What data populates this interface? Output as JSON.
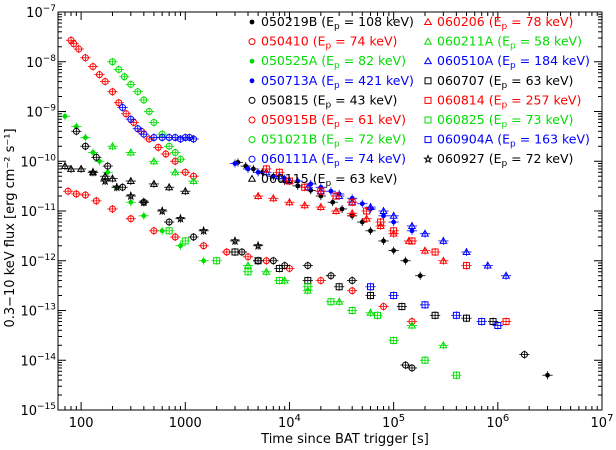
{
  "chart_data": {
    "type": "scatter",
    "xlabel": "Time since BAT trigger [s]",
    "ylabel": "0.3−10 keV flux [erg cm⁻² s⁻¹]",
    "x_scale": "log",
    "y_scale": "log",
    "xlim": [
      60,
      10000000
    ],
    "ylim": [
      1e-15,
      1e-07
    ],
    "x_ticks": [
      {
        "value": 100,
        "label": "100"
      },
      {
        "value": 1000,
        "label": "1000"
      },
      {
        "value": 10000,
        "label": "10",
        "exp": "4"
      },
      {
        "value": 100000,
        "label": "10",
        "exp": "5"
      },
      {
        "value": 1000000,
        "label": "10",
        "exp": "6"
      },
      {
        "value": 10000000,
        "label": "10",
        "exp": "7"
      }
    ],
    "y_ticks": [
      {
        "value": 1e-15,
        "label": "10",
        "exp": "−15"
      },
      {
        "value": 1e-14,
        "label": "10",
        "exp": "−14"
      },
      {
        "value": 1e-13,
        "label": "10",
        "exp": "−13"
      },
      {
        "value": 1e-12,
        "label": "10",
        "exp": "−12"
      },
      {
        "value": 1e-11,
        "label": "10",
        "exp": "−11"
      },
      {
        "value": 1e-10,
        "label": "10",
        "exp": "−10"
      },
      {
        "value": 1e-09,
        "label": "10",
        "exp": "−9"
      },
      {
        "value": 1e-08,
        "label": "10",
        "exp": "−8"
      },
      {
        "value": 1e-07,
        "label": "10",
        "exp": "−7"
      }
    ],
    "series": [
      {
        "name": "050219B",
        "ep": "108",
        "color": "#000000",
        "marker": "filled-circle",
        "points": [
          [
            3200,
            9.5e-11
          ],
          [
            3800,
            8e-11
          ],
          [
            4500,
            7e-11
          ],
          [
            5500,
            6e-11
          ],
          [
            7000,
            5e-11
          ],
          [
            9000,
            4e-11
          ],
          [
            12000,
            3.2e-11
          ],
          [
            16000,
            2.6e-11
          ],
          [
            20000,
            2e-11
          ],
          [
            26000,
            1.5e-11
          ],
          [
            32000,
            1.1e-11
          ],
          [
            40000,
            8e-12
          ],
          [
            50000,
            6e-12
          ],
          [
            60000,
            4e-12
          ],
          [
            80000,
            2.5e-12
          ],
          [
            100000,
            1.6e-12
          ],
          [
            130000,
            1e-12
          ],
          [
            180000,
            5e-13
          ],
          [
            3000000,
            5e-15
          ]
        ]
      },
      {
        "name": "050410",
        "ep": "74",
        "color": "#ff0000",
        "marker": "open-circle",
        "points": [
          [
            75,
            2.5e-11
          ],
          [
            90,
            2.2e-11
          ],
          [
            110,
            2.1e-11
          ],
          [
            140,
            1.6e-11
          ],
          [
            200,
            1.1e-11
          ],
          [
            300,
            7e-12
          ],
          [
            500,
            4e-12
          ],
          [
            800,
            3e-12
          ],
          [
            1500,
            2e-12
          ],
          [
            2500,
            1.5e-12
          ],
          [
            4000,
            1.2e-12
          ],
          [
            6000,
            1e-12
          ],
          [
            10000,
            7e-13
          ],
          [
            20000,
            4e-13
          ],
          [
            40000,
            2.5e-13
          ],
          [
            80000,
            1.2e-13
          ],
          [
            150000,
            6e-14
          ]
        ]
      },
      {
        "name": "050525A",
        "ep": "82",
        "color": "#00dd00",
        "marker": "filled-circle",
        "points": [
          [
            70,
            8e-10
          ],
          [
            90,
            5e-10
          ],
          [
            110,
            3e-10
          ],
          [
            130,
            1.5e-10
          ],
          [
            150,
            1e-10
          ],
          [
            180,
            6e-11
          ],
          [
            220,
            3e-11
          ],
          [
            300,
            1.5e-11
          ],
          [
            400,
            8e-12
          ],
          [
            600,
            4e-12
          ],
          [
            900,
            2e-12
          ],
          [
            1500,
            1e-12
          ]
        ]
      },
      {
        "name": "050713A",
        "ep": "421",
        "color": "#0000ff",
        "marker": "filled-circle",
        "points": [
          [
            3000,
            9e-11
          ],
          [
            4000,
            7e-11
          ],
          [
            5000,
            6e-11
          ],
          [
            7000,
            5e-11
          ],
          [
            9000,
            4.5e-11
          ],
          [
            12000,
            4e-11
          ],
          [
            16000,
            3.5e-11
          ],
          [
            20000,
            3e-11
          ],
          [
            25000,
            2.5e-11
          ],
          [
            30000,
            2.2e-11
          ],
          [
            40000,
            1.8e-11
          ],
          [
            50000,
            1.4e-11
          ],
          [
            60000,
            1.1e-11
          ],
          [
            80000,
            8e-12
          ],
          [
            100000,
            6e-12
          ],
          [
            150000,
            4e-12
          ]
        ]
      },
      {
        "name": "050815",
        "ep": "43",
        "color": "#000000",
        "marker": "open-circle",
        "points": [
          [
            90,
            4e-10
          ],
          [
            110,
            2e-10
          ],
          [
            140,
            1.2e-10
          ],
          [
            180,
            8e-11
          ],
          [
            250,
            3e-11
          ],
          [
            400,
            1.5e-11
          ],
          [
            700,
            6e-12
          ],
          [
            1200,
            3e-12
          ],
          [
            3500,
            1.5e-12
          ],
          [
            5000,
            1e-12
          ],
          [
            7000,
            1e-12
          ],
          [
            9000,
            8e-13
          ],
          [
            15000,
            8e-13
          ],
          [
            25000,
            5e-13
          ],
          [
            40000,
            4e-13
          ],
          [
            130000,
            8e-15
          ],
          [
            150000,
            7e-15
          ],
          [
            1800000,
            1.3e-14
          ]
        ]
      },
      {
        "name": "050915B",
        "ep": "61",
        "color": "#ff0000",
        "marker": "open-circle",
        "points": [
          [
            80,
            2.7e-08
          ],
          [
            85,
            2.3e-08
          ],
          [
            95,
            1.8e-08
          ],
          [
            110,
            1.2e-08
          ],
          [
            130,
            8e-09
          ],
          [
            150,
            5.5e-09
          ],
          [
            170,
            4e-09
          ],
          [
            200,
            2.5e-09
          ],
          [
            230,
            1.5e-09
          ],
          [
            270,
            9e-10
          ],
          [
            320,
            6e-10
          ],
          [
            380,
            4e-10
          ],
          [
            450,
            2.8e-10
          ],
          [
            550,
            1.9e-10
          ],
          [
            650,
            1.4e-10
          ],
          [
            800,
            1e-10
          ],
          [
            1000,
            6e-11
          ],
          [
            1200,
            5e-11
          ]
        ]
      },
      {
        "name": "051021B",
        "ep": "72",
        "color": "#00dd00",
        "marker": "open-circle",
        "points": [
          [
            200,
            1e-08
          ],
          [
            230,
            7e-09
          ],
          [
            260,
            5e-09
          ],
          [
            300,
            3.5e-09
          ],
          [
            350,
            2.5e-09
          ],
          [
            400,
            1.7e-09
          ],
          [
            450,
            1e-09
          ],
          [
            500,
            6e-10
          ],
          [
            600,
            3.5e-10
          ],
          [
            700,
            2e-10
          ],
          [
            800,
            1.5e-10
          ],
          [
            900,
            1.1e-10
          ]
        ]
      },
      {
        "name": "060111A",
        "ep": "74",
        "color": "#0000ff",
        "marker": "open-circle",
        "points": [
          [
            250,
            1.2e-09
          ],
          [
            300,
            7e-10
          ],
          [
            350,
            4.5e-10
          ],
          [
            400,
            3.5e-10
          ],
          [
            500,
            3e-10
          ],
          [
            600,
            3e-10
          ],
          [
            700,
            3e-10
          ],
          [
            800,
            3e-10
          ],
          [
            900,
            2.8e-10
          ],
          [
            1000,
            3e-10
          ],
          [
            1100,
            3e-10
          ],
          [
            1200,
            2.8e-10
          ]
        ]
      },
      {
        "name": "060115",
        "ep": "63",
        "color": "#000000",
        "marker": "open-triangle",
        "points": [
          [
            70,
            8e-11
          ],
          [
            80,
            7e-11
          ],
          [
            100,
            7e-11
          ],
          [
            130,
            6e-11
          ],
          [
            170,
            5e-11
          ],
          [
            200,
            4.5e-11
          ],
          [
            300,
            4e-11
          ],
          [
            500,
            3.5e-11
          ],
          [
            700,
            3e-11
          ],
          [
            1000,
            2.5e-11
          ]
        ]
      },
      {
        "name": "060206",
        "ep": "78",
        "color": "#ff0000",
        "marker": "open-triangle",
        "points": [
          [
            5000,
            2e-11
          ],
          [
            7000,
            1.8e-11
          ],
          [
            10000,
            1.5e-11
          ],
          [
            14000,
            1.3e-11
          ],
          [
            20000,
            1.2e-11
          ],
          [
            28000,
            1e-11
          ],
          [
            40000,
            9e-12
          ],
          [
            55000,
            7e-12
          ],
          [
            75000,
            5e-12
          ],
          [
            100000,
            3.5e-12
          ],
          [
            140000,
            2.5e-12
          ],
          [
            200000,
            1.6e-12
          ],
          [
            300000,
            1e-12
          ]
        ]
      },
      {
        "name": "060211A",
        "ep": "58",
        "color": "#00dd00",
        "marker": "open-triangle",
        "points": [
          [
            200,
            2e-10
          ],
          [
            300,
            1.5e-10
          ],
          [
            500,
            1e-10
          ],
          [
            800,
            6e-11
          ],
          [
            1200,
            4e-11
          ],
          [
            4000,
            8e-13
          ],
          [
            6000,
            6e-13
          ],
          [
            9000,
            4e-13
          ],
          [
            15000,
            2.5e-13
          ],
          [
            30000,
            1.5e-13
          ],
          [
            60000,
            9e-14
          ],
          [
            150000,
            5e-14
          ],
          [
            300000,
            2e-14
          ]
        ]
      },
      {
        "name": "060510A",
        "ep": "184",
        "color": "#0000ff",
        "marker": "open-triangle",
        "points": [
          [
            6000,
            6e-11
          ],
          [
            8000,
            5e-11
          ],
          [
            10000,
            4e-11
          ],
          [
            15000,
            3e-11
          ],
          [
            20000,
            2.5e-11
          ],
          [
            30000,
            2e-11
          ],
          [
            40000,
            1.5e-11
          ],
          [
            60000,
            1.2e-11
          ],
          [
            80000,
            1e-11
          ],
          [
            100000,
            8e-12
          ],
          [
            150000,
            5e-12
          ],
          [
            200000,
            3.5e-12
          ],
          [
            300000,
            2.5e-12
          ],
          [
            500000,
            1.5e-12
          ],
          [
            800000,
            8e-13
          ],
          [
            1200000,
            5e-13
          ]
        ]
      },
      {
        "name": "060707",
        "ep": "63",
        "color": "#000000",
        "marker": "open-square",
        "points": [
          [
            3000,
            1.5e-12
          ],
          [
            5000,
            1e-12
          ],
          [
            8000,
            7e-13
          ],
          [
            15000,
            4e-13
          ],
          [
            30000,
            3e-13
          ],
          [
            60000,
            2e-13
          ],
          [
            120000,
            1.2e-13
          ],
          [
            250000,
            8e-14
          ],
          [
            500000,
            7e-14
          ],
          [
            900000,
            6e-14
          ]
        ]
      },
      {
        "name": "060814",
        "ep": "257",
        "color": "#ff0000",
        "marker": "open-square",
        "points": [
          [
            6000,
            7e-11
          ],
          [
            8000,
            6e-11
          ],
          [
            10000,
            4e-11
          ],
          [
            14000,
            3e-11
          ],
          [
            20000,
            2.5e-11
          ],
          [
            28000,
            2e-11
          ],
          [
            40000,
            1.5e-11
          ],
          [
            55000,
            1e-11
          ],
          [
            75000,
            6e-12
          ],
          [
            100000,
            4e-12
          ],
          [
            150000,
            2.5e-12
          ],
          [
            250000,
            1.5e-12
          ],
          [
            500000,
            8e-13
          ],
          [
            1200000,
            6e-14
          ]
        ]
      },
      {
        "name": "060825",
        "ep": "73",
        "color": "#00dd00",
        "marker": "open-square",
        "points": [
          [
            700,
            4e-12
          ],
          [
            1000,
            2.5e-12
          ],
          [
            2000,
            1e-12
          ],
          [
            4000,
            6e-13
          ],
          [
            8000,
            4e-13
          ],
          [
            15000,
            3e-13
          ],
          [
            25000,
            1.5e-13
          ],
          [
            40000,
            1e-13
          ],
          [
            70000,
            8e-14
          ],
          [
            100000,
            2.5e-14
          ],
          [
            200000,
            1e-14
          ],
          [
            400000,
            5e-15
          ]
        ]
      },
      {
        "name": "060904A",
        "ep": "163",
        "color": "#0000ff",
        "marker": "open-square",
        "points": [
          [
            60000,
            3e-13
          ],
          [
            100000,
            2e-13
          ],
          [
            200000,
            1.3e-13
          ],
          [
            400000,
            8e-14
          ],
          [
            700000,
            6e-14
          ],
          [
            1000000,
            5e-14
          ]
        ]
      },
      {
        "name": "060927",
        "ep": "72",
        "color": "#000000",
        "marker": "star",
        "points": [
          [
            130,
            6e-11
          ],
          [
            170,
            4e-11
          ],
          [
            220,
            3e-11
          ],
          [
            300,
            2e-11
          ],
          [
            400,
            1.5e-11
          ],
          [
            600,
            1e-11
          ],
          [
            900,
            7e-12
          ],
          [
            1500,
            4e-12
          ],
          [
            3000,
            2.5e-12
          ],
          [
            5000,
            2e-12
          ]
        ]
      }
    ],
    "legend": {
      "placement": "top-right",
      "prefix": "E",
      "subscript": "p",
      "equals": " = ",
      "unit": " keV"
    }
  }
}
